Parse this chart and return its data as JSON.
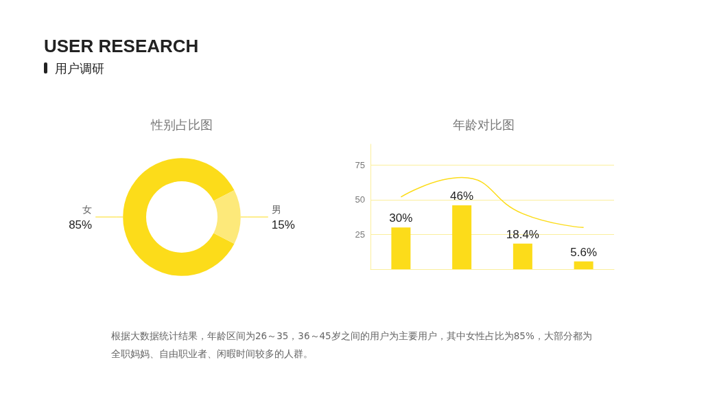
{
  "chart_data": [
    {
      "type": "donut",
      "title": "性别占比图",
      "annotations": [
        "USER RESEARCH",
        "用户调研",
        "根据大数据统计结果，年龄区间为26～35，36～45岁之间的用户为主要用户，其中女性占比为85%，大部分都为全职妈妈、自由职业者、闲暇时间较多的人群。"
      ],
      "categories": [
        "女",
        "男"
      ],
      "values": [
        85,
        15
      ],
      "colors": [
        "#fcdc1a",
        "#fde97a"
      ],
      "value_labels": [
        "85%",
        "15%"
      ],
      "legend": false
    },
    {
      "type": "bar",
      "title": "年龄对比图",
      "categories": [
        null,
        null,
        null,
        null
      ],
      "series": [
        {
          "type": "bar",
          "color": "#fcdc1a",
          "values": [
            30,
            46,
            18.4,
            5.6
          ],
          "value_labels": [
            "30%",
            "46%",
            "18.4%",
            "5.6%"
          ]
        },
        {
          "type": "line",
          "color": "#fcdc1a",
          "values": [
            52,
            66,
            40,
            30
          ],
          "marker": "none"
        }
      ],
      "ylim": [
        0,
        90
      ],
      "yticks": [
        25,
        50,
        75
      ],
      "grid": "y",
      "legend": false
    }
  ]
}
